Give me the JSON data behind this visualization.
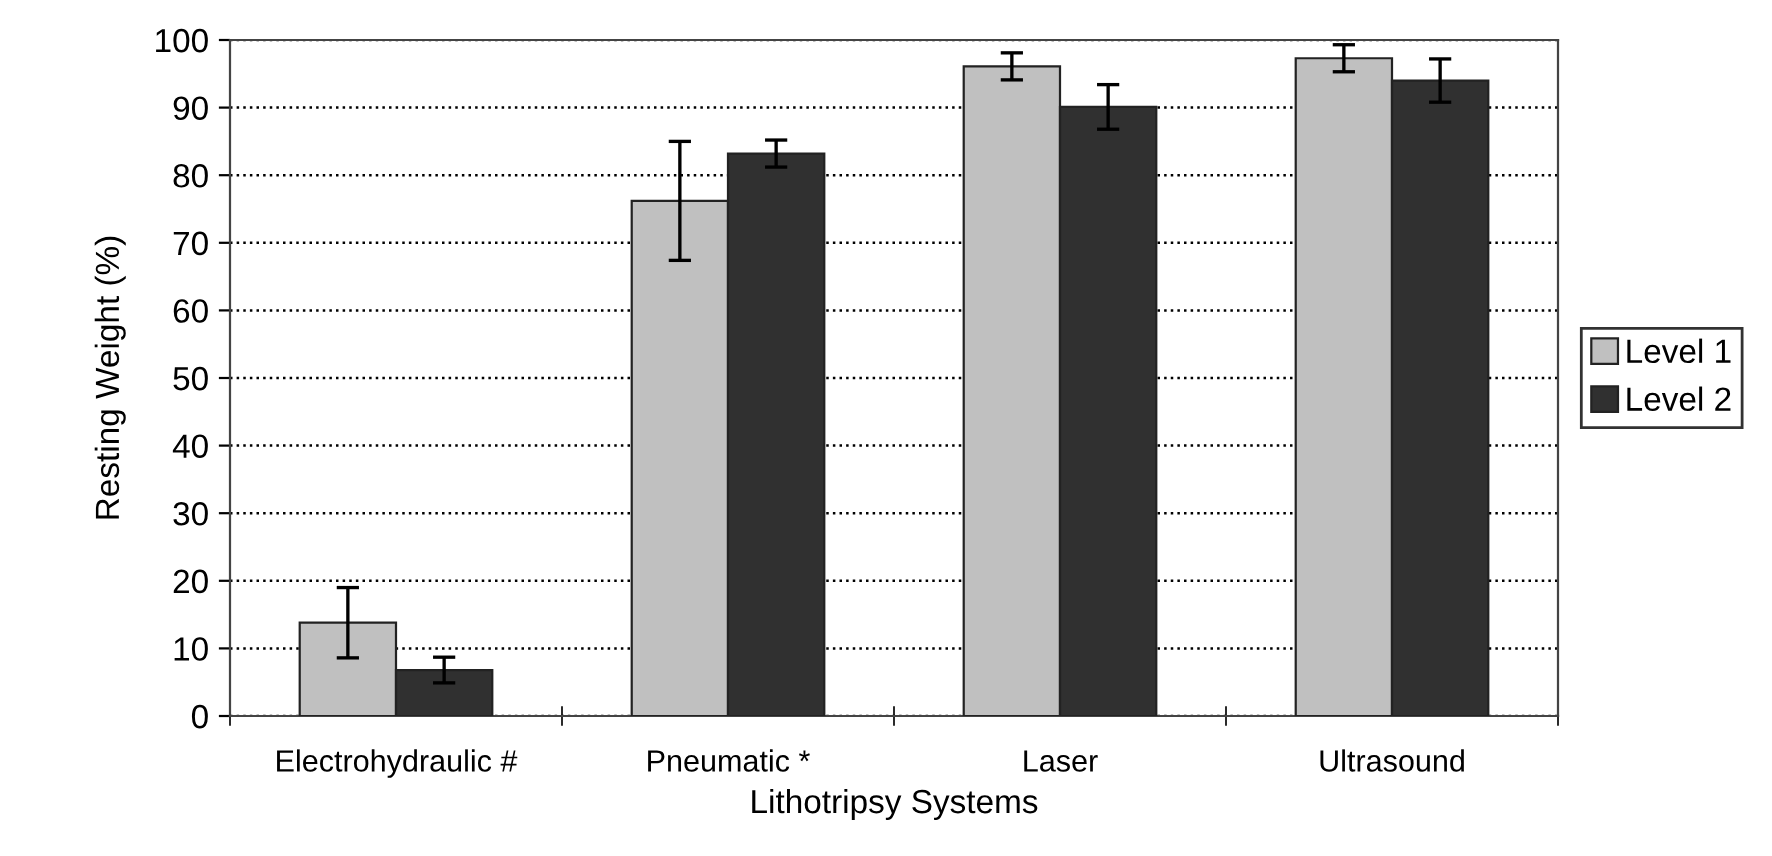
{
  "chart_data": {
    "type": "bar",
    "xlabel": "Lithotripsy Systems",
    "ylabel": "Resting Weight (%)",
    "categories": [
      "Electrohydraulic #",
      "Pneumatic *",
      "Laser",
      "Ultrasound"
    ],
    "series": [
      {
        "name": "Level 1",
        "color": "#c0c0c0",
        "values": [
          13.8,
          76.2,
          96.1,
          97.3
        ],
        "errors": [
          5.2,
          8.8,
          2,
          2
        ]
      },
      {
        "name": "Level 2",
        "color": "#303030",
        "values": [
          6.8,
          83.2,
          90.1,
          94.0
        ],
        "errors": [
          1.9,
          2,
          3.3,
          3.2
        ]
      }
    ],
    "ylim": [
      0,
      100
    ],
    "yticks": [
      0,
      10,
      20,
      30,
      40,
      50,
      60,
      70,
      80,
      90,
      100
    ],
    "grid": "y",
    "line_style": "dotted",
    "legend": "right"
  }
}
